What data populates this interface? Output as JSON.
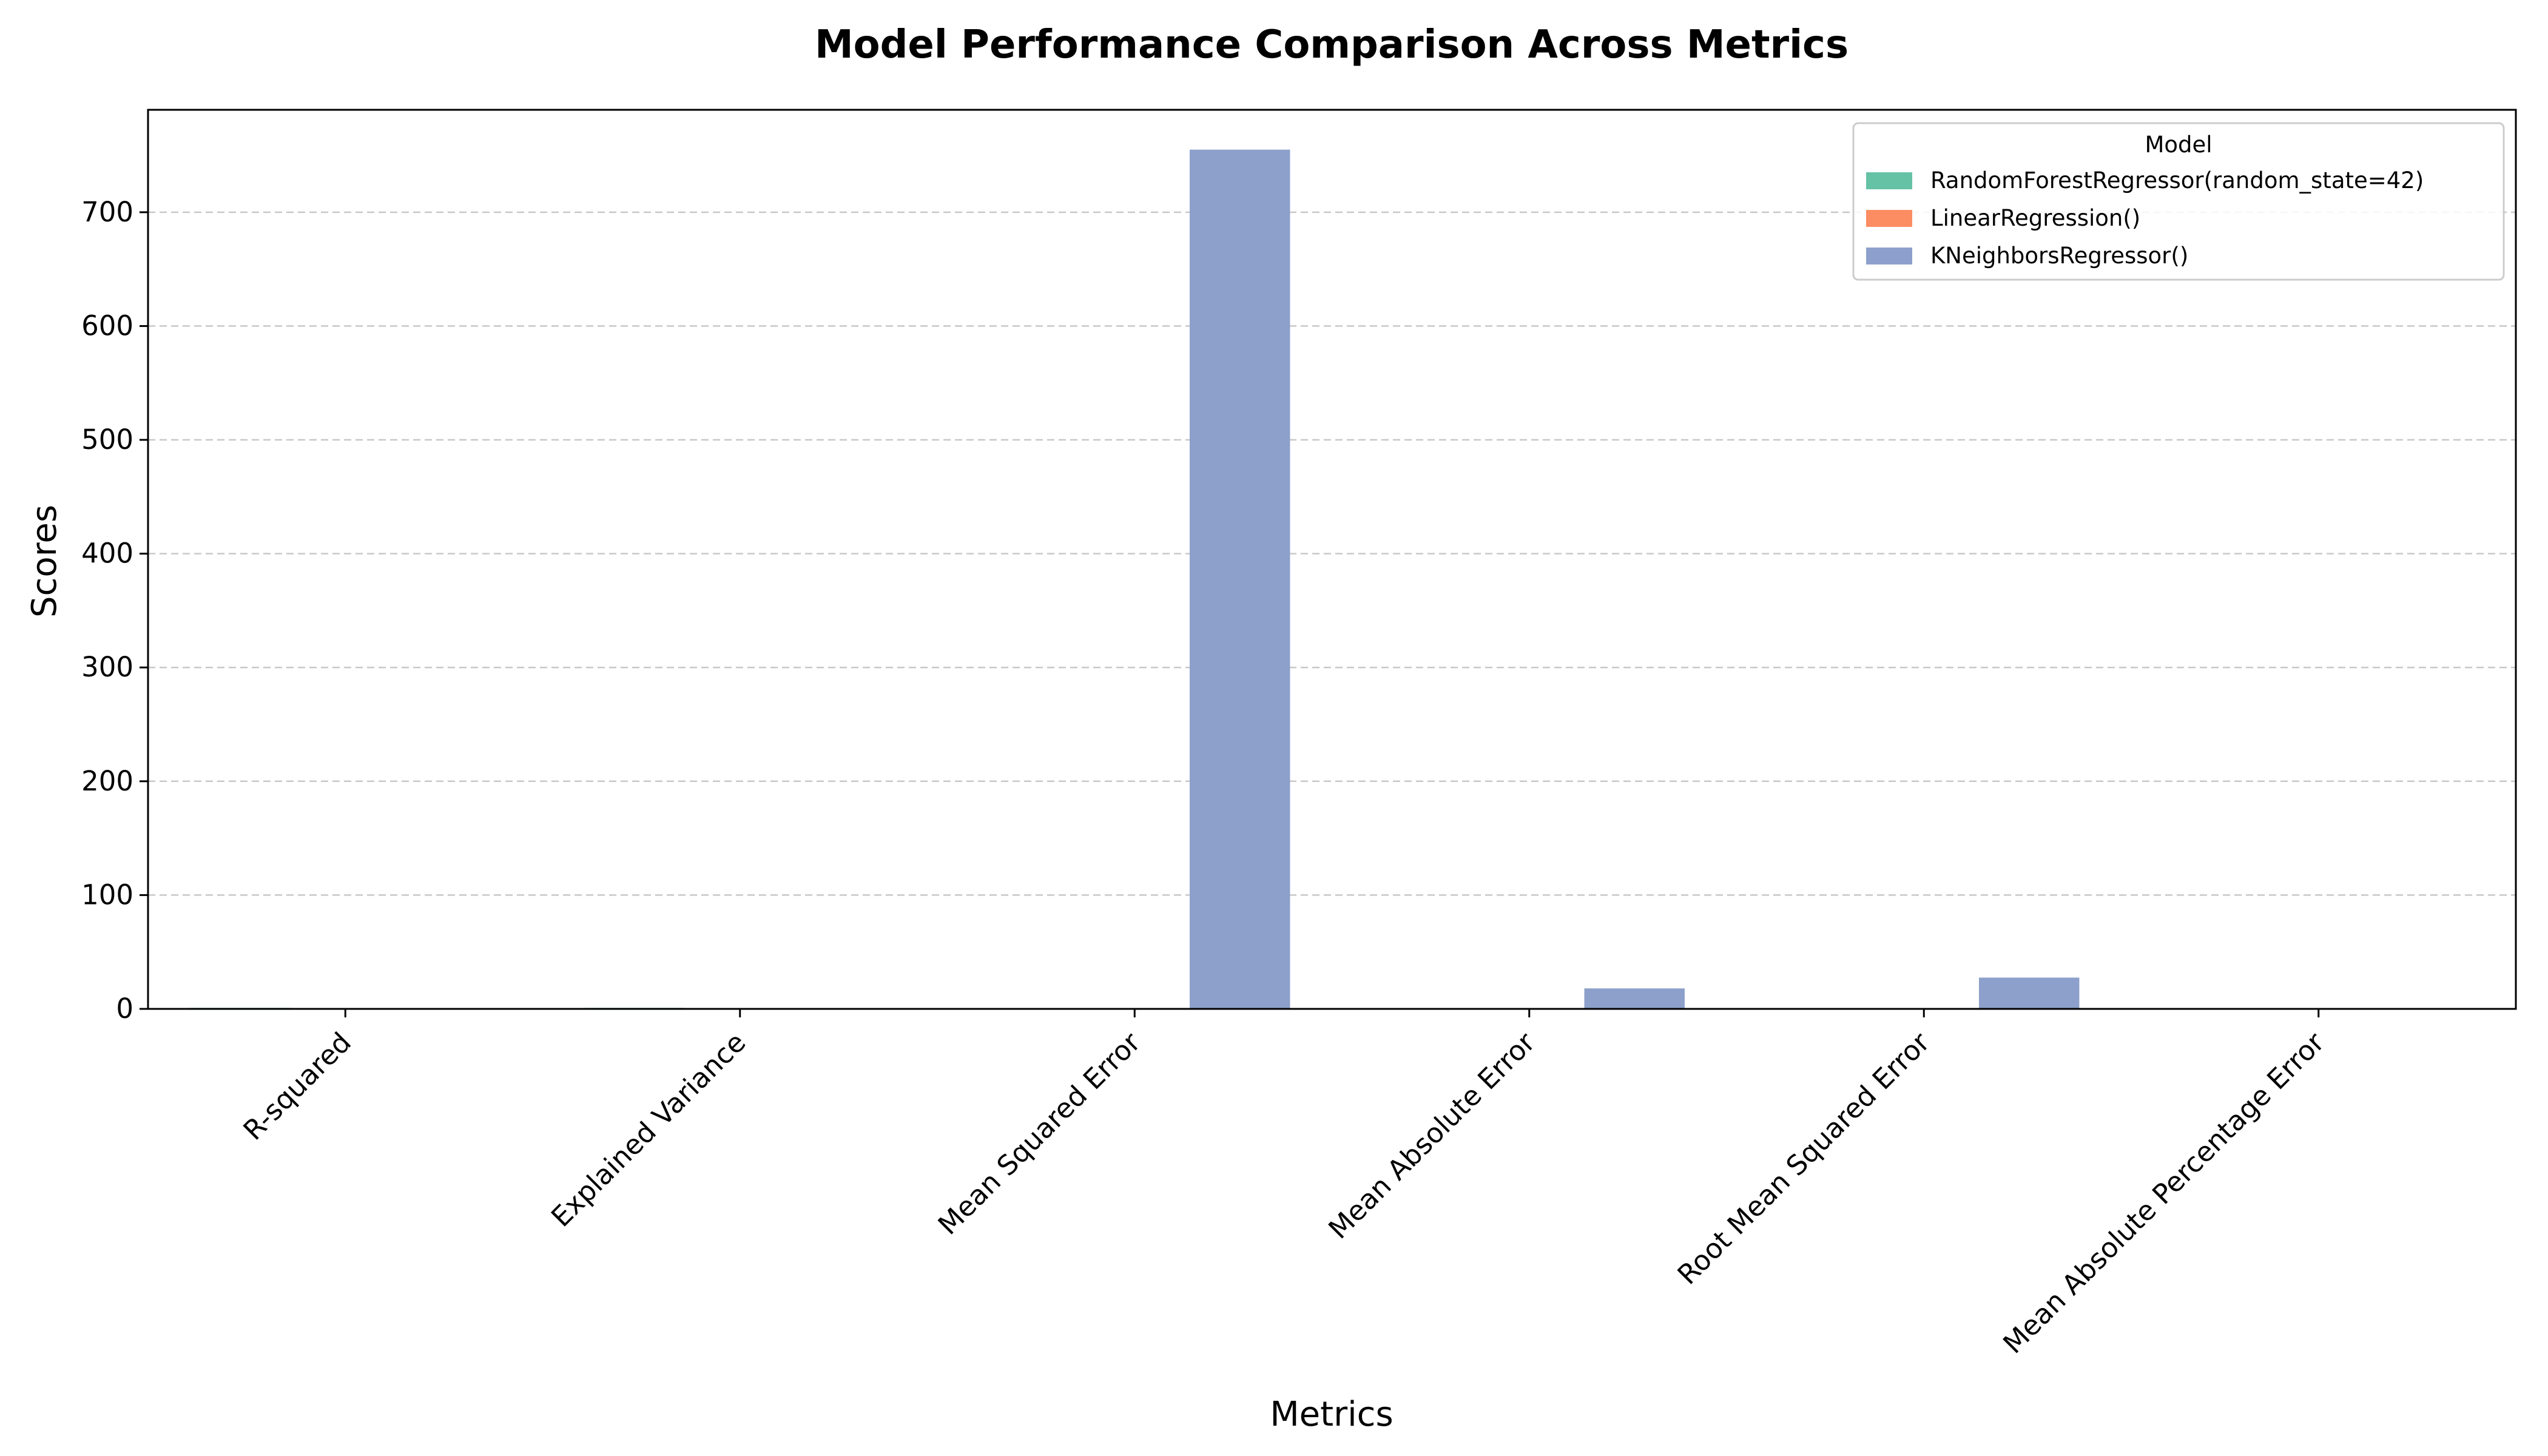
{
  "chart_data": {
    "type": "bar",
    "title": "Model Performance Comparison Across Metrics",
    "xlabel": "Metrics",
    "ylabel": "Scores",
    "ylim": [
      0,
      790
    ],
    "yticks": [
      0,
      100,
      200,
      300,
      400,
      500,
      600,
      700
    ],
    "grid": "y-dashed",
    "legend": {
      "title": "Model",
      "position": "top-right"
    },
    "categories": [
      "R-squared",
      "Explained Variance",
      "Mean Squared Error",
      "Mean Absolute Error",
      "Root Mean Squared Error",
      "Mean Absolute Percentage Error"
    ],
    "series": [
      {
        "name": "RandomForestRegressor(random_state=42)",
        "color": "#66c2a5",
        "values": [
          0.9,
          0.9,
          0,
          0,
          0,
          0
        ]
      },
      {
        "name": "LinearRegression()",
        "color": "#fc8d62",
        "values": [
          0.8,
          0.8,
          0,
          0,
          0,
          0
        ]
      },
      {
        "name": "KNeighborsRegressor()",
        "color": "#8da0cb",
        "values": [
          0.3,
          0.3,
          755,
          18,
          27.5,
          0.2
        ]
      }
    ]
  }
}
